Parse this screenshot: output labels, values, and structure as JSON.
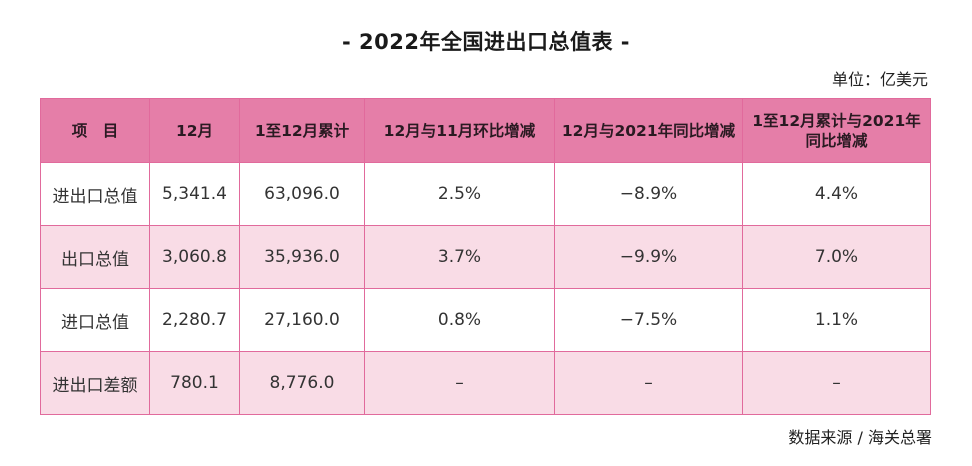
{
  "title": "- 2022年全国进出口总值表 -",
  "unit": "单位：亿美元",
  "source": "数据来源 / 海关总署",
  "colors": {
    "header_bg": "#e57ea8",
    "border": "#e16a9c",
    "stripe_bg": "#f9dce6"
  },
  "table": {
    "headers": [
      "项　目",
      "12月",
      "1至12月累计",
      "12月与11月环比增减",
      "12月与2021年同比增减",
      "1至12月累计与2021年同比增减"
    ],
    "rows": [
      [
        "进出口总值",
        "5,341.4",
        "63,096.0",
        "2.5%",
        "−8.9%",
        "4.4%"
      ],
      [
        "出口总值",
        "3,060.8",
        "35,936.0",
        "3.7%",
        "−9.9%",
        "7.0%"
      ],
      [
        "进口总值",
        "2,280.7",
        "27,160.0",
        "0.8%",
        "−7.5%",
        "1.1%"
      ],
      [
        "进出口差额",
        "780.1",
        "8,776.0",
        "–",
        "–",
        "–"
      ]
    ]
  }
}
